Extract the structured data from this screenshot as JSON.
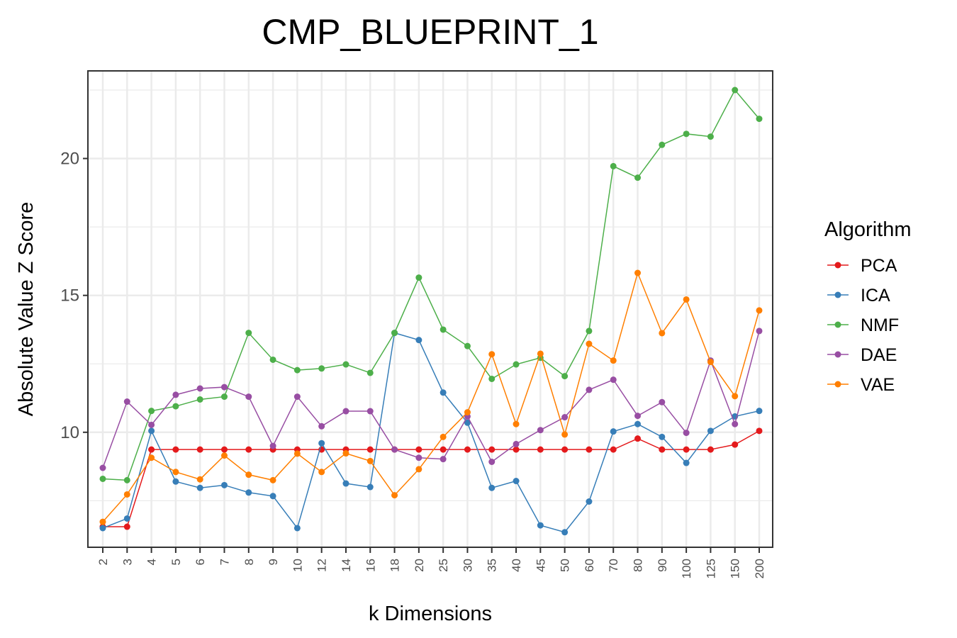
{
  "chart_data": {
    "type": "line",
    "title": "CMP_BLUEPRINT_1",
    "xlabel": "k Dimensions",
    "ylabel": "Absolute Value Z Score",
    "categories": [
      "2",
      "3",
      "4",
      "5",
      "6",
      "7",
      "8",
      "9",
      "10",
      "12",
      "14",
      "16",
      "18",
      "20",
      "25",
      "30",
      "35",
      "40",
      "45",
      "50",
      "60",
      "70",
      "80",
      "90",
      "100",
      "125",
      "150",
      "200"
    ],
    "ylim": [
      5.8,
      23.2
    ],
    "yticks": [
      10,
      15,
      20
    ],
    "grid": true,
    "legend_title": "Algorithm",
    "legend_position": "right",
    "series": [
      {
        "name": "PCA",
        "color": "#e41a1c",
        "values": [
          6.55,
          6.55,
          9.37,
          9.37,
          9.37,
          9.37,
          9.37,
          9.37,
          9.37,
          9.37,
          9.37,
          9.37,
          9.37,
          9.37,
          9.37,
          9.37,
          9.37,
          9.37,
          9.37,
          9.37,
          9.37,
          9.37,
          9.77,
          9.37,
          9.37,
          9.37,
          9.55,
          10.05
        ]
      },
      {
        "name": "ICA",
        "color": "#377eb8",
        "values": [
          6.5,
          6.85,
          10.05,
          8.2,
          7.97,
          8.07,
          7.8,
          7.67,
          6.5,
          9.6,
          8.13,
          8.0,
          13.63,
          13.37,
          11.45,
          10.35,
          7.97,
          8.22,
          6.6,
          6.35,
          7.47,
          10.03,
          10.3,
          9.83,
          8.88,
          10.05,
          10.58,
          10.78
        ]
      },
      {
        "name": "NMF",
        "color": "#4daf4a",
        "values": [
          8.3,
          8.25,
          10.78,
          10.95,
          11.2,
          11.3,
          13.63,
          12.65,
          12.27,
          12.33,
          12.48,
          12.17,
          13.63,
          15.65,
          13.75,
          13.15,
          11.95,
          12.48,
          12.72,
          12.05,
          13.7,
          19.72,
          19.3,
          20.5,
          20.9,
          20.8,
          22.5,
          21.45
        ]
      },
      {
        "name": "DAE",
        "color": "#984ea3",
        "values": [
          8.7,
          11.12,
          10.27,
          11.37,
          11.6,
          11.65,
          11.3,
          9.5,
          11.3,
          10.22,
          10.77,
          10.77,
          9.37,
          9.07,
          9.02,
          10.58,
          8.92,
          9.57,
          10.08,
          10.55,
          11.55,
          11.92,
          10.6,
          11.1,
          9.98,
          12.62,
          10.3,
          13.7
        ]
      },
      {
        "name": "VAE",
        "color": "#ff7f00",
        "values": [
          6.73,
          7.73,
          9.07,
          8.55,
          8.28,
          9.15,
          8.45,
          8.25,
          9.22,
          8.55,
          9.23,
          8.95,
          7.7,
          8.65,
          9.83,
          10.73,
          12.85,
          10.3,
          12.87,
          9.92,
          13.23,
          12.62,
          15.82,
          13.62,
          14.85,
          12.57,
          11.32,
          14.45
        ]
      }
    ]
  }
}
